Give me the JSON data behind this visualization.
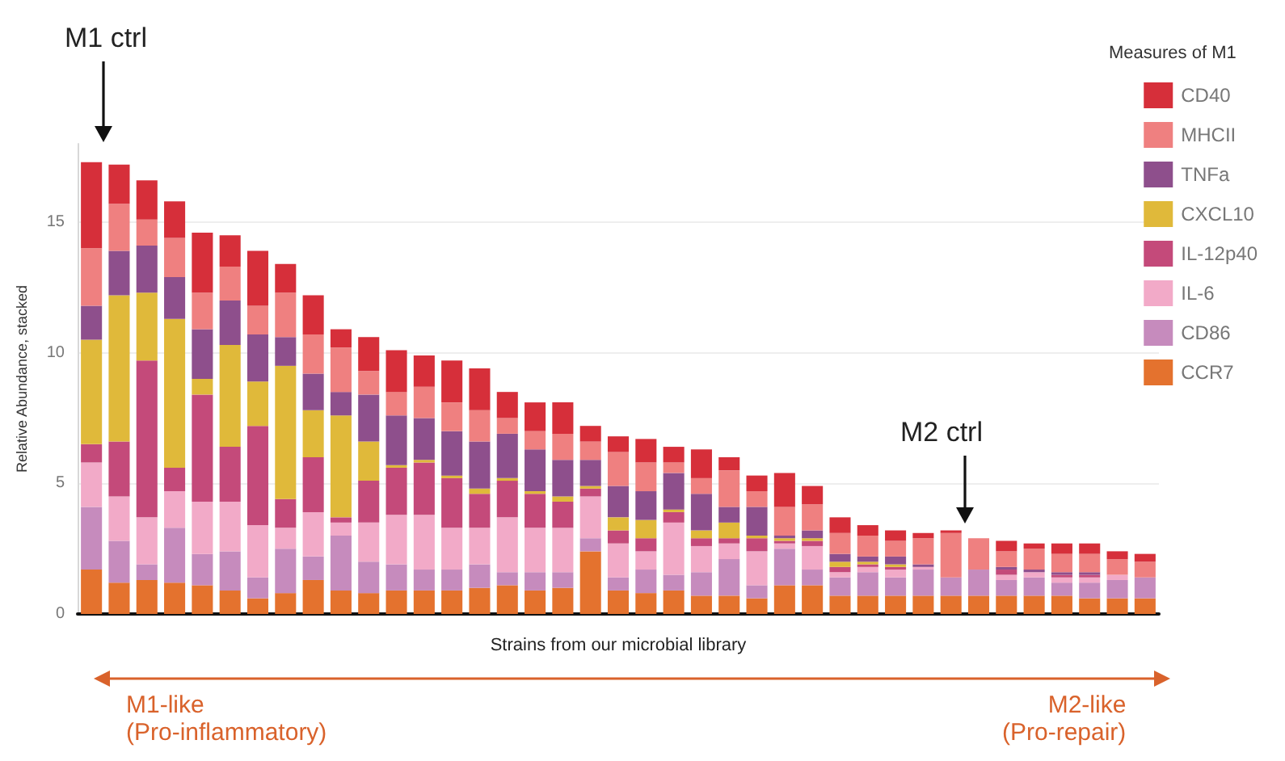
{
  "chart_data": {
    "type": "bar",
    "stacked": true,
    "ylabel": "Relative Abundance, stacked",
    "xlabel": "Strains from our microbial library",
    "legend_title": "Measures of M1",
    "legend": "right",
    "grid": "y",
    "ylim": [
      0,
      18
    ],
    "yticks": [
      0,
      5,
      10,
      15
    ],
    "categories": [
      null,
      null,
      null,
      null,
      null,
      null,
      null,
      null,
      null,
      null,
      null,
      null,
      null,
      null,
      null,
      null,
      null,
      null,
      null,
      null,
      null,
      null,
      null,
      null,
      null,
      null,
      null,
      null,
      null,
      null,
      null,
      null,
      null,
      null,
      null,
      null,
      null,
      null,
      null
    ],
    "annotations": [
      "M1 ctrl",
      "M2 ctrl",
      "M1-like\n(Pro-inflammatory)",
      "M2-like\n(Pro-repair)"
    ],
    "series": [
      {
        "name": "CCR7",
        "color": "#e4722e",
        "values": [
          1.7,
          1.2,
          1.3,
          1.2,
          1.1,
          0.9,
          0.6,
          0.8,
          1.3,
          0.9,
          0.8,
          0.9,
          0.9,
          0.9,
          1.0,
          1.1,
          0.9,
          1.0,
          2.4,
          0.9,
          0.8,
          0.9,
          0.7,
          0.7,
          0.6,
          1.1,
          1.1,
          0.7,
          0.7,
          0.7,
          0.7,
          0.7,
          0.7,
          0.7,
          0.7,
          0.7,
          0.6,
          0.6,
          0.6
        ]
      },
      {
        "name": "CD86",
        "color": "#c68bbd",
        "values": [
          2.4,
          1.6,
          0.6,
          2.1,
          1.2,
          1.5,
          0.8,
          1.7,
          0.9,
          2.1,
          1.2,
          1.0,
          0.8,
          0.8,
          0.9,
          0.5,
          0.7,
          0.6,
          0.5,
          0.5,
          0.9,
          0.6,
          0.9,
          1.4,
          0.5,
          1.4,
          0.6,
          0.7,
          0.9,
          0.7,
          1.0,
          0.7,
          1.0,
          0.6,
          0.7,
          0.5,
          0.6,
          0.7,
          0.8
        ]
      },
      {
        "name": "IL-6",
        "color": "#f2aac8",
        "values": [
          1.7,
          1.7,
          1.8,
          1.4,
          2.0,
          1.9,
          2.0,
          0.8,
          1.7,
          0.5,
          1.5,
          1.9,
          2.1,
          1.6,
          1.4,
          2.1,
          1.7,
          1.7,
          1.6,
          1.3,
          0.7,
          2.0,
          1.0,
          0.6,
          1.3,
          0.2,
          0.9,
          0.2,
          0.2,
          0.3,
          0.1,
          0,
          0,
          0.2,
          0.2,
          0.2,
          0.2,
          0.2,
          0
        ]
      },
      {
        "name": "IL-12p40",
        "color": "#c44a7a",
        "values": [
          0.7,
          2.1,
          6.0,
          0.9,
          4.1,
          2.1,
          3.8,
          1.1,
          2.1,
          0.2,
          1.6,
          1.8,
          2.0,
          1.9,
          1.3,
          1.4,
          1.3,
          1.0,
          0.3,
          0.5,
          0.5,
          0.4,
          0.3,
          0.2,
          0.5,
          0.1,
          0.2,
          0.2,
          0.1,
          0.1,
          0,
          0,
          0,
          0.2,
          0,
          0.1,
          0.1,
          0,
          0
        ]
      },
      {
        "name": "CXCL10",
        "color": "#e0b93a",
        "values": [
          4.0,
          5.6,
          2.6,
          5.7,
          0.6,
          3.9,
          1.7,
          5.1,
          1.8,
          3.9,
          1.5,
          0.1,
          0.1,
          0.1,
          0.2,
          0.1,
          0.1,
          0.2,
          0.1,
          0.5,
          0.7,
          0.1,
          0.3,
          0.6,
          0.1,
          0.1,
          0.1,
          0.2,
          0.1,
          0.1,
          0,
          0,
          0,
          0,
          0,
          0,
          0,
          0,
          0
        ]
      },
      {
        "name": "TNFa",
        "color": "#8e4f8c",
        "values": [
          1.3,
          1.7,
          1.8,
          1.6,
          1.9,
          1.7,
          1.8,
          1.1,
          1.4,
          0.9,
          1.8,
          1.9,
          1.6,
          1.7,
          1.8,
          1.7,
          1.6,
          1.4,
          1.0,
          1.2,
          1.1,
          1.4,
          1.4,
          0.6,
          1.1,
          0.1,
          0.3,
          0.3,
          0.2,
          0.3,
          0.1,
          0,
          0,
          0.1,
          0.1,
          0.1,
          0.1,
          0,
          0
        ]
      },
      {
        "name": "MHCII",
        "color": "#ef8080",
        "values": [
          2.2,
          1.8,
          1.0,
          1.5,
          1.4,
          1.3,
          1.1,
          1.7,
          1.5,
          1.7,
          0.9,
          0.9,
          1.2,
          1.1,
          1.2,
          0.6,
          0.7,
          1.0,
          0.7,
          1.3,
          1.1,
          0.4,
          0.6,
          1.4,
          0.6,
          1.1,
          1.0,
          0.8,
          0.8,
          0.6,
          1.0,
          1.7,
          1.2,
          0.6,
          0.8,
          0.7,
          0.7,
          0.6,
          0.6
        ]
      },
      {
        "name": "CD40",
        "color": "#d62f3a",
        "values": [
          3.3,
          1.5,
          1.5,
          1.4,
          2.3,
          1.2,
          2.1,
          1.1,
          1.5,
          0.7,
          1.3,
          1.6,
          1.2,
          1.6,
          1.6,
          1.0,
          1.1,
          1.2,
          0.6,
          0.6,
          0.9,
          0.6,
          1.1,
          0.5,
          0.6,
          1.3,
          0.7,
          0.6,
          0.4,
          0.4,
          0.2,
          0.1,
          0,
          0.4,
          0.2,
          0.4,
          0.4,
          0.3,
          0.3
        ]
      }
    ]
  }
}
